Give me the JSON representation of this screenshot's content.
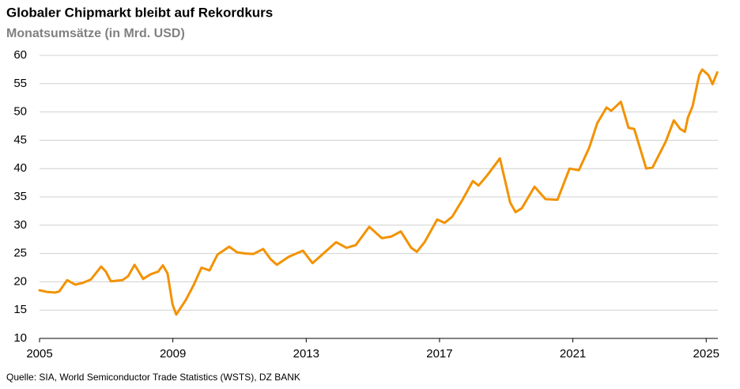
{
  "chart_data": {
    "type": "line",
    "title": "Globaler Chipmarkt bleibt auf Rekordkurs",
    "subtitle": "Monatsumsätze (in Mrd. USD)",
    "source": "Quelle: SIA, World Semiconductor Trade Statistics (WSTS), DZ BANK",
    "x": [
      2005.0,
      2005.24,
      2005.47,
      2005.59,
      2005.83,
      2006.07,
      2006.3,
      2006.54,
      2006.85,
      2006.99,
      2007.14,
      2007.49,
      2007.66,
      2007.85,
      2008.11,
      2008.32,
      2008.56,
      2008.7,
      2008.84,
      2008.99,
      2009.1,
      2009.39,
      2009.63,
      2009.86,
      2010.1,
      2010.34,
      2010.69,
      2010.93,
      2011.17,
      2011.41,
      2011.71,
      2011.93,
      2012.12,
      2012.47,
      2012.9,
      2013.19,
      2013.42,
      2013.9,
      2014.21,
      2014.49,
      2014.89,
      2015.27,
      2015.56,
      2015.84,
      2016.15,
      2016.32,
      2016.55,
      2016.93,
      2017.15,
      2017.38,
      2017.69,
      2018.0,
      2018.17,
      2018.43,
      2018.81,
      2019.12,
      2019.28,
      2019.47,
      2019.85,
      2020.18,
      2020.54,
      2020.9,
      2021.18,
      2021.49,
      2021.73,
      2022.01,
      2022.15,
      2022.44,
      2022.67,
      2022.84,
      2023.2,
      2023.39,
      2023.79,
      2024.03,
      2024.22,
      2024.36,
      2024.45,
      2024.59,
      2024.79,
      2024.88,
      2025.07,
      2025.19,
      2025.33
    ],
    "series": [
      {
        "name": "Monatsumsätze",
        "color": "#f39200",
        "values": [
          18.5,
          18.2,
          18.1,
          18.3,
          20.3,
          19.5,
          19.8,
          20.4,
          22.7,
          21.8,
          20.1,
          20.3,
          21.0,
          23.0,
          20.5,
          21.3,
          21.8,
          22.9,
          21.5,
          16.0,
          14.2,
          16.8,
          19.5,
          22.5,
          22.0,
          24.8,
          26.2,
          25.2,
          25.0,
          24.9,
          25.8,
          24.0,
          23.0,
          24.4,
          25.5,
          23.3,
          24.5,
          27.0,
          26.0,
          26.5,
          29.7,
          27.7,
          28.0,
          28.9,
          26.0,
          25.3,
          27.0,
          31.0,
          30.4,
          31.5,
          34.5,
          37.8,
          37.0,
          38.8,
          41.8,
          34.0,
          32.3,
          33.0,
          36.8,
          34.6,
          34.5,
          40.0,
          39.7,
          43.7,
          48.0,
          50.8,
          50.2,
          51.8,
          47.2,
          47.0,
          40.0,
          40.2,
          44.8,
          48.5,
          47.0,
          46.5,
          49.0,
          51.0,
          56.5,
          57.5,
          56.5,
          54.9,
          57.0
        ]
      }
    ],
    "xlim": [
      2005,
      2025.35
    ],
    "xticks": [
      2005,
      2009,
      2013,
      2017,
      2021,
      2025
    ],
    "ylim": [
      10,
      60
    ],
    "yticks": [
      10,
      15,
      20,
      25,
      30,
      35,
      40,
      45,
      50,
      55,
      60
    ],
    "grid": true
  }
}
